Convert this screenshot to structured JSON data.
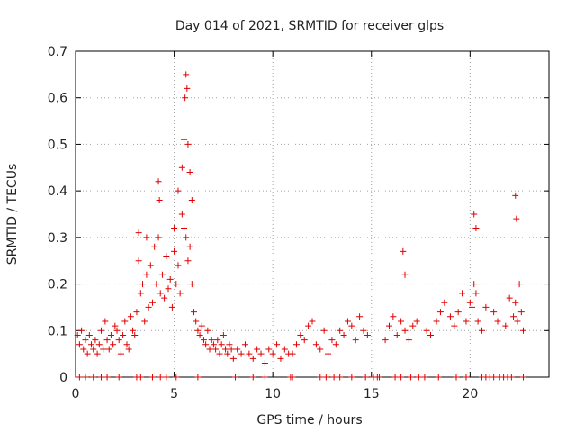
{
  "chart_data": {
    "type": "scatter",
    "title": "Day 014 of 2021, SRMTID for receiver glps",
    "xlabel": "GPS time / hours",
    "ylabel": "SRMTID / TECUs",
    "xlim": [
      0,
      24
    ],
    "ylim": [
      0,
      0.7
    ],
    "xticks": [
      0,
      5,
      10,
      15,
      20
    ],
    "xtick_labels": [
      "0",
      "5",
      "10",
      "15",
      "20"
    ],
    "yticks": [
      0,
      0.1,
      0.2,
      0.3,
      0.4,
      0.5,
      0.6,
      0.7
    ],
    "ytick_labels": [
      "0",
      "0.1",
      "0.2",
      "0.3",
      "0.4",
      "0.5",
      "0.6",
      "0.7"
    ],
    "grid": true,
    "marker": "+",
    "color": "#e00000",
    "series": [
      {
        "name": "SRMTID",
        "x": [
          0.1,
          0.2,
          0.3,
          0.4,
          0.5,
          0.6,
          0.7,
          0.8,
          0.9,
          1.0,
          1.1,
          1.2,
          1.3,
          1.4,
          1.5,
          1.6,
          1.7,
          1.8,
          1.9,
          2.0,
          2.1,
          2.2,
          2.3,
          2.4,
          2.5,
          2.6,
          2.7,
          2.8,
          2.9,
          3.0,
          3.1,
          3.2,
          3.3,
          3.4,
          3.5,
          3.6,
          3.7,
          3.8,
          3.9,
          4.0,
          4.1,
          4.2,
          4.3,
          4.4,
          4.5,
          4.6,
          4.7,
          4.8,
          4.9,
          5.0,
          5.1,
          5.2,
          5.3,
          5.4,
          5.5,
          5.6,
          5.7,
          5.8,
          5.9,
          6.0,
          6.1,
          6.2,
          6.3,
          6.4,
          6.5,
          6.6,
          6.7,
          6.8,
          6.9,
          7.0,
          7.1,
          7.2,
          7.3,
          7.4,
          7.5,
          7.6,
          7.7,
          7.8,
          7.9,
          8.0,
          8.2,
          8.4,
          8.6,
          8.8,
          9.0,
          9.2,
          9.4,
          9.6,
          9.8,
          10.0,
          10.2,
          10.4,
          10.6,
          10.8,
          11.0,
          11.2,
          11.4,
          11.6,
          11.8,
          12.0,
          12.2,
          12.4,
          12.6,
          12.8,
          13.0,
          13.2,
          13.4,
          13.6,
          13.8,
          14.0,
          14.2,
          14.4,
          14.6,
          14.8,
          15.7,
          15.9,
          16.1,
          16.3,
          16.5,
          16.7,
          16.9,
          17.1,
          17.3,
          17.8,
          18.0,
          18.3,
          18.5,
          18.7,
          19.0,
          19.2,
          19.4,
          19.6,
          19.8,
          20.0,
          20.1,
          20.2,
          20.3,
          20.4,
          20.6,
          20.8,
          21.2,
          21.4,
          21.8,
          22.0,
          22.2,
          22.3,
          22.4,
          22.5,
          22.6,
          22.7,
          4.2,
          4.25,
          5.0,
          5.2,
          5.4,
          5.5,
          5.55,
          5.6,
          5.65,
          5.7,
          5.8,
          5.9,
          3.2,
          3.6,
          16.6,
          16.7,
          20.2,
          20.3,
          22.3,
          22.35,
          0.2,
          0.5,
          0.9,
          1.3,
          1.6,
          2.2,
          3.1,
          3.3,
          3.9,
          4.3,
          4.6,
          5.1,
          6.2,
          8.1,
          9.0,
          9.6,
          10.9,
          11.0,
          12.4,
          12.7,
          13.1,
          13.4,
          14.0,
          14.7,
          15.1,
          15.3,
          15.4,
          16.2,
          16.5,
          17.0,
          17.4,
          17.7,
          18.4,
          19.3,
          19.8,
          20.6,
          20.8,
          21.0,
          21.2,
          21.5,
          21.7,
          21.9,
          22.1,
          22.7
        ],
        "y": [
          0.09,
          0.07,
          0.1,
          0.06,
          0.08,
          0.05,
          0.09,
          0.07,
          0.06,
          0.08,
          0.05,
          0.07,
          0.1,
          0.06,
          0.12,
          0.08,
          0.06,
          0.09,
          0.07,
          0.11,
          0.1,
          0.08,
          0.05,
          0.09,
          0.12,
          0.07,
          0.06,
          0.13,
          0.1,
          0.09,
          0.14,
          0.25,
          0.18,
          0.2,
          0.12,
          0.22,
          0.15,
          0.24,
          0.16,
          0.28,
          0.2,
          0.3,
          0.18,
          0.22,
          0.17,
          0.26,
          0.19,
          0.21,
          0.15,
          0.27,
          0.2,
          0.24,
          0.18,
          0.35,
          0.32,
          0.3,
          0.25,
          0.28,
          0.2,
          0.14,
          0.12,
          0.1,
          0.09,
          0.11,
          0.08,
          0.07,
          0.1,
          0.06,
          0.08,
          0.07,
          0.06,
          0.08,
          0.05,
          0.07,
          0.09,
          0.06,
          0.05,
          0.07,
          0.06,
          0.04,
          0.06,
          0.05,
          0.07,
          0.05,
          0.04,
          0.06,
          0.05,
          0.03,
          0.06,
          0.05,
          0.07,
          0.04,
          0.06,
          0.05,
          0.05,
          0.07,
          0.09,
          0.08,
          0.11,
          0.12,
          0.07,
          0.06,
          0.1,
          0.05,
          0.08,
          0.07,
          0.1,
          0.09,
          0.12,
          0.11,
          0.08,
          0.13,
          0.1,
          0.09,
          0.08,
          0.11,
          0.13,
          0.09,
          0.12,
          0.1,
          0.08,
          0.11,
          0.12,
          0.1,
          0.09,
          0.12,
          0.14,
          0.16,
          0.13,
          0.11,
          0.14,
          0.18,
          0.12,
          0.16,
          0.15,
          0.2,
          0.18,
          0.12,
          0.1,
          0.15,
          0.14,
          0.12,
          0.11,
          0.17,
          0.13,
          0.16,
          0.12,
          0.2,
          0.14,
          0.1,
          0.42,
          0.38,
          0.32,
          0.4,
          0.45,
          0.51,
          0.6,
          0.65,
          0.62,
          0.5,
          0.44,
          0.38,
          0.31,
          0.3,
          0.27,
          0.22,
          0.35,
          0.32,
          0.39,
          0.34,
          0,
          0,
          0,
          0,
          0,
          0,
          0,
          0,
          0,
          0,
          0,
          0,
          0,
          0,
          0,
          0,
          0,
          0,
          0,
          0,
          0,
          0,
          0,
          0,
          0,
          0,
          0,
          0,
          0,
          0,
          0,
          0,
          0,
          0,
          0,
          0,
          0,
          0,
          0,
          0,
          0,
          0,
          0,
          0
        ]
      }
    ]
  }
}
